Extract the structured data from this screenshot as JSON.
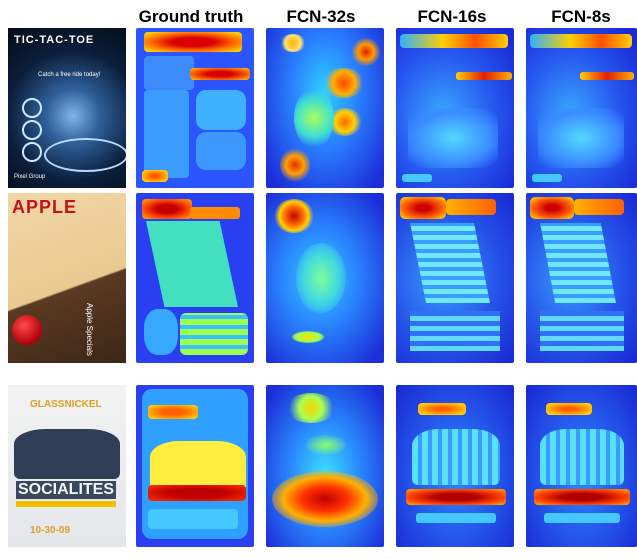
{
  "headers": [
    "Ground truth",
    "FCN-32s",
    "FCN-16s",
    "FCN-8s"
  ],
  "rows": [
    {
      "poster": {
        "title": "TIC-TAC-TOE",
        "tagline": "Catch a free ride today!",
        "footer": "Pixel Group"
      }
    },
    {
      "poster": {
        "title": "APPLE",
        "side_text": "Apple Specials"
      }
    },
    {
      "poster": {
        "title": "GLASSNICKEL",
        "headline": "SOCIALITES",
        "date": "10-30-09"
      }
    }
  ],
  "colors": {
    "jet_low": "#1a2bd6",
    "jet_mid": "#35b8ff",
    "jet_high": "#ff2a0a",
    "jet_peak": "#c80000"
  }
}
